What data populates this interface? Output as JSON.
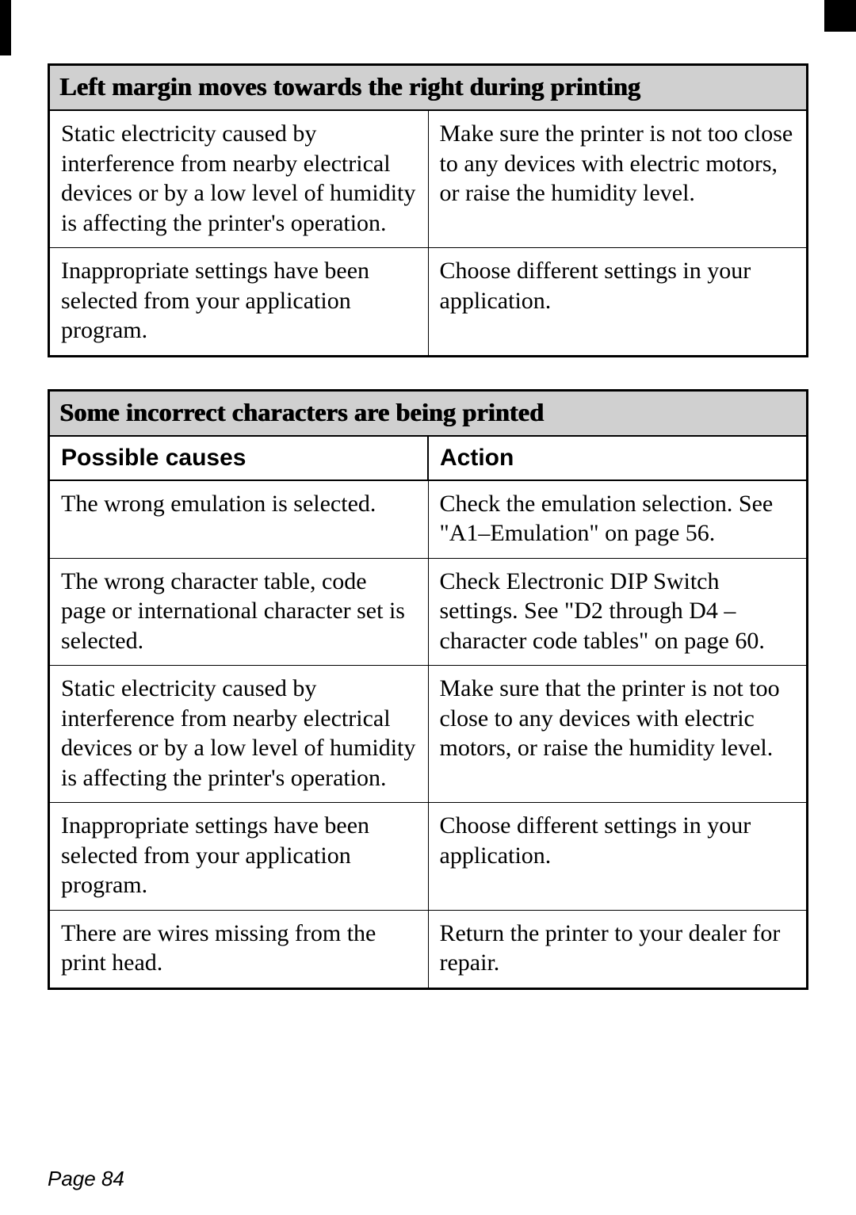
{
  "page_number": "Page 84",
  "table1": {
    "title": "Left margin moves towards the right during printing",
    "rows": [
      {
        "cause": "Static electricity caused by interference from nearby electrical devices or by a low level of humidity is affecting the printer's operation.",
        "action": "Make sure the printer is not too close to any devices with electric motors, or raise the humidity level."
      },
      {
        "cause": "Inappropriate settings have been selected from your application program.",
        "action": "Choose different settings in your application."
      }
    ]
  },
  "table2": {
    "title": "Some incorrect characters are being printed",
    "col_head_left": "Possible causes",
    "col_head_right": "Action",
    "rows": [
      {
        "cause": "The wrong emulation is selected.",
        "action": "Check the emulation selection. See \"A1–Emulation\" on page 56."
      },
      {
        "cause": "The wrong character table, code page or international character set is selected.",
        "action": "Check Electronic DIP Switch settings. See \"D2 through D4 – character code tables\" on page 60."
      },
      {
        "cause": "Static electricity caused by interference from nearby electrical devices or by a low level of humidity is affecting the printer's operation.",
        "action": "Make sure that the printer is not too close to any devices with electric motors, or raise the humidity level."
      },
      {
        "cause": "Inappropriate settings have been selected from your application program.",
        "action": "Choose different settings in your application."
      },
      {
        "cause": "There are wires missing from the print head.",
        "action": "Return the printer to your dealer for repair."
      }
    ]
  },
  "colors": {
    "header_bg": "#d0d0d0",
    "border": "#000000",
    "text": "#000000",
    "bg": "#ffffff"
  },
  "typography": {
    "title_fontsize": 32,
    "body_fontsize": 30,
    "colhead_fontsize": 30,
    "pagenum_fontsize": 26
  }
}
